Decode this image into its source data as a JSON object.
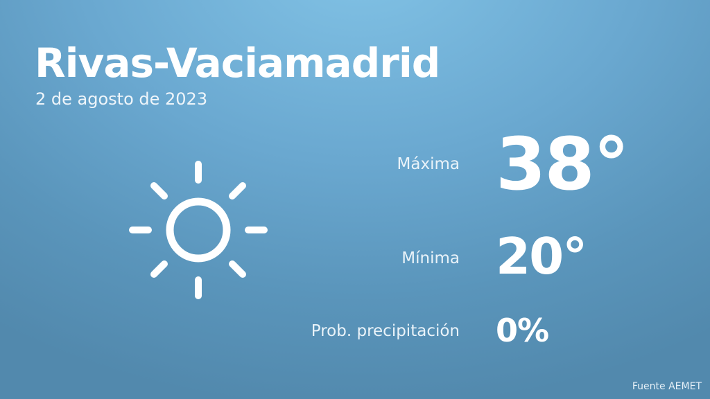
{
  "header": {
    "city": "Rivas-Vaciamadrid",
    "date": "2 de agosto de 2023"
  },
  "weather": {
    "icon": "sun-icon",
    "max": {
      "label": "Máxima",
      "value": "38°"
    },
    "min": {
      "label": "Mínima",
      "value": "20°"
    },
    "precip": {
      "label": "Prob. precipitación",
      "value": "0%"
    }
  },
  "footer": {
    "source": "Fuente AEMET"
  },
  "colors": {
    "background_top": "#82c3e6",
    "background_bottom": "#5289ad",
    "text": "#ffffff"
  }
}
